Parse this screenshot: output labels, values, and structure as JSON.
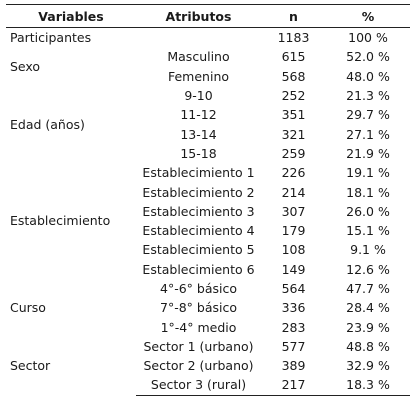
{
  "headers": {
    "variables": "Variables",
    "atributos": "Atributos",
    "n": "n",
    "pct": "%"
  },
  "rows": [
    {
      "variable": "Participantes",
      "attribute": "",
      "n": "1183",
      "pct": "100 %"
    },
    {
      "variable": "Sexo",
      "attribute": "Masculino",
      "n": "615",
      "pct": "52.0 %"
    },
    {
      "variable": "",
      "attribute": "Femenino",
      "n": "568",
      "pct": "48.0 %"
    },
    {
      "variable": "Edad (años)",
      "attribute": "9-10",
      "n": "252",
      "pct": "21.3 %"
    },
    {
      "variable": "",
      "attribute": "11-12",
      "n": "351",
      "pct": "29.7 %"
    },
    {
      "variable": "",
      "attribute": "13-14",
      "n": "321",
      "pct": "27.1 %"
    },
    {
      "variable": "",
      "attribute": "15-18",
      "n": "259",
      "pct": "21.9 %"
    },
    {
      "variable": "Establecimiento",
      "attribute": "Establecimiento 1",
      "n": "226",
      "pct": "19.1 %"
    },
    {
      "variable": "",
      "attribute": "Establecimiento 2",
      "n": "214",
      "pct": "18.1 %"
    },
    {
      "variable": "",
      "attribute": "Establecimiento 3",
      "n": "307",
      "pct": "26.0 %"
    },
    {
      "variable": "",
      "attribute": "Establecimiento 4",
      "n": "179",
      "pct": "15.1 %"
    },
    {
      "variable": "",
      "attribute": "Establecimiento 5",
      "n": "108",
      "pct": "9.1 %"
    },
    {
      "variable": "",
      "attribute": "Establecimiento 6",
      "n": "149",
      "pct": "12.6 %"
    },
    {
      "variable": "Curso",
      "attribute": "4°-6° básico",
      "n": "564",
      "pct": "47.7 %"
    },
    {
      "variable": "",
      "attribute": "7°-8° básico",
      "n": "336",
      "pct": "28.4 %"
    },
    {
      "variable": "",
      "attribute": "1°-4° medio",
      "n": "283",
      "pct": "23.9 %"
    },
    {
      "variable": "Sector",
      "attribute": "Sector 1 (urbano)",
      "n": "577",
      "pct": "48.8 %"
    },
    {
      "variable": "",
      "attribute": "Sector 2 (urbano)",
      "n": "389",
      "pct": "32.9 %"
    },
    {
      "variable": "",
      "attribute": "Sector 3 (rural)",
      "n": "217",
      "pct": "18.3 %"
    }
  ]
}
